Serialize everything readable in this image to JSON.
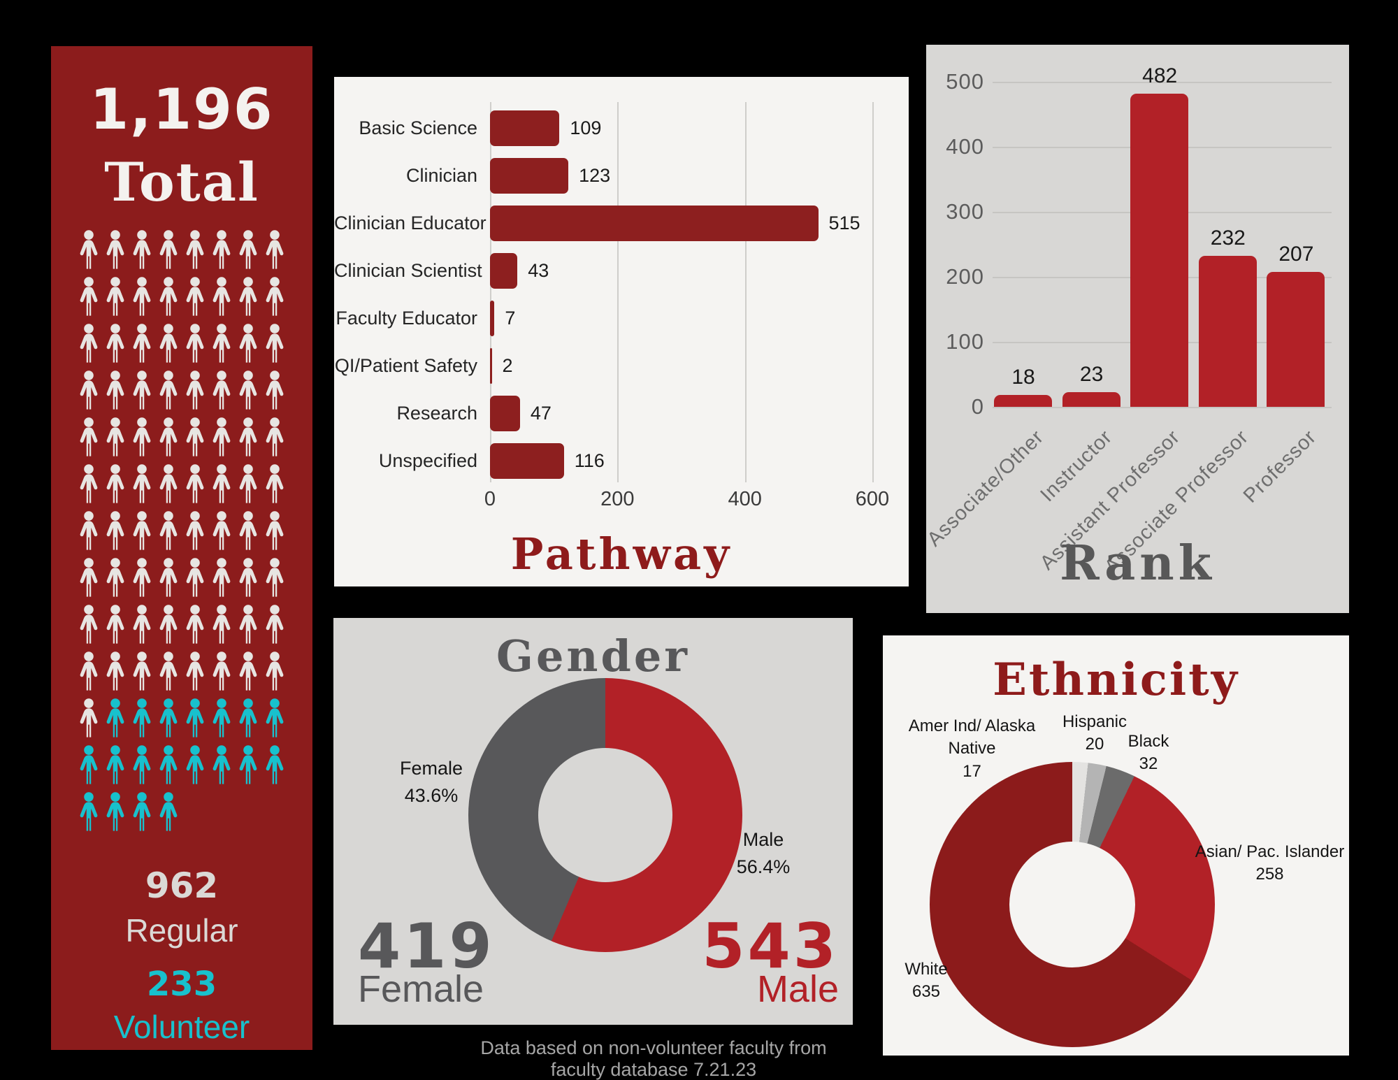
{
  "footer": {
    "note": "Data based on non-volunteer faculty from faculty database 7.21.23"
  },
  "total_panel": {
    "total_value": "1,196",
    "total_label": "Total",
    "regular_value": "962",
    "regular_label": "Regular",
    "volunteer_value": "233",
    "volunteer_label": "Volunteer",
    "pictogram": {
      "columns": 8,
      "total_icons": 100,
      "regular_icons": 81,
      "volunteer_icons": 19
    },
    "colors": {
      "background": "#8c1c1c",
      "regular_icon": "#e7e5e2",
      "volunteer_icon": "#18c1cd",
      "total_text": "#f4f2ef",
      "regular_text": "#dbd9d6"
    }
  },
  "chart_data": [
    {
      "id": "pathway",
      "type": "bar",
      "orientation": "horizontal",
      "title": "Pathway",
      "categories": [
        "Basic Science",
        "Clinician",
        "Clinician Educator",
        "Clinician Scientist",
        "Faculty Educator",
        "QI/Patient Safety",
        "Research",
        "Unspecified"
      ],
      "values": [
        109,
        123,
        515,
        43,
        7,
        2,
        47,
        116
      ],
      "xlabel": "",
      "ylabel": "",
      "xlim": [
        0,
        600
      ],
      "xticks": [
        0,
        200,
        400,
        600
      ],
      "grid": true,
      "bar_color": "#8d1f1f",
      "background": "#f5f4f2",
      "title_color": "#8e1b1b"
    },
    {
      "id": "rank",
      "type": "bar",
      "orientation": "vertical",
      "title": "Rank",
      "categories": [
        "Associate/Other",
        "Instructor",
        "Assistant Professor",
        "Associate Professor",
        "Professor"
      ],
      "values": [
        18,
        23,
        482,
        232,
        207
      ],
      "xlabel": "",
      "ylabel": "",
      "ylim": [
        0,
        500
      ],
      "yticks": [
        0,
        100,
        200,
        300,
        400,
        500
      ],
      "grid": true,
      "bar_color": "#b22127",
      "background": "#d8d7d5",
      "title_color": "#585858"
    },
    {
      "id": "gender",
      "type": "pie",
      "donut": true,
      "title": "Gender",
      "labels": [
        "Male",
        "Female"
      ],
      "values": [
        543,
        419
      ],
      "percents": [
        "56.4%",
        "43.6%"
      ],
      "colors": [
        "#b22127",
        "#58585a"
      ],
      "start_angle": 0,
      "direction": "clockwise",
      "background": "#d8d7d5",
      "summary": {
        "female_value": "419",
        "female_label": "Female",
        "male_value": "543",
        "male_label": "Male"
      }
    },
    {
      "id": "ethnicity",
      "type": "pie",
      "donut": true,
      "title": "Ethnicity",
      "labels": [
        "Amer Ind/ Alaska Native",
        "Hispanic",
        "Black",
        "Asian/ Pac. Islander",
        "White"
      ],
      "values": [
        17,
        20,
        32,
        258,
        635
      ],
      "colors": [
        "#e4e3e1",
        "#b4b4b4",
        "#6b6b6b",
        "#b22127",
        "#8c1b1b"
      ],
      "start_angle": 0,
      "direction": "clockwise",
      "background": "#f5f4f2"
    }
  ]
}
